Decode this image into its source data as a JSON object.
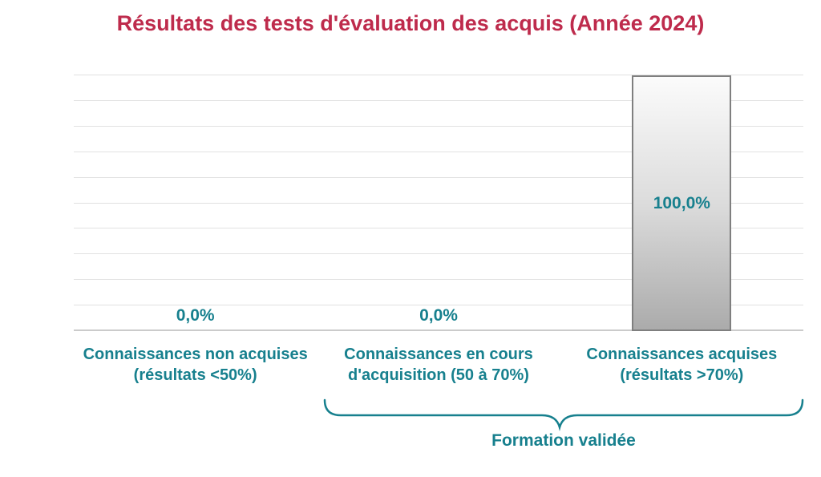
{
  "colors": {
    "title": "#BE2B4C",
    "accent_teal": "#17808E",
    "gridline": "#E1E1E1",
    "axis_line": "#CBCBCB",
    "bar_border": "#7F7F7F",
    "bar_gradient_top": "#FBFBFB",
    "bar_gradient_bottom": "#ABABAB"
  },
  "chart_data": {
    "type": "bar",
    "title": "Résultats des tests d'évaluation des acquis (Année 2024)",
    "categories": [
      "Connaissances non acquises (résultats <50%)",
      "Connaissances en cours d'acquisition (50 à 70%)",
      "Connaissances acquises (résultats >70%)"
    ],
    "values": [
      0.0,
      0.0,
      100.0
    ],
    "value_labels": [
      "0,0%",
      "0,0%",
      "100,0%"
    ],
    "xlabel": "",
    "ylabel": "",
    "ylim": [
      0,
      100
    ],
    "grid_step": 10,
    "grid": true,
    "legend": false,
    "y_tick_labels_visible": false,
    "annotation": {
      "label": "Formation validée",
      "covers_categories": [
        "Connaissances en cours d'acquisition (50 à 70%)",
        "Connaissances acquises (résultats >70%)"
      ]
    }
  }
}
